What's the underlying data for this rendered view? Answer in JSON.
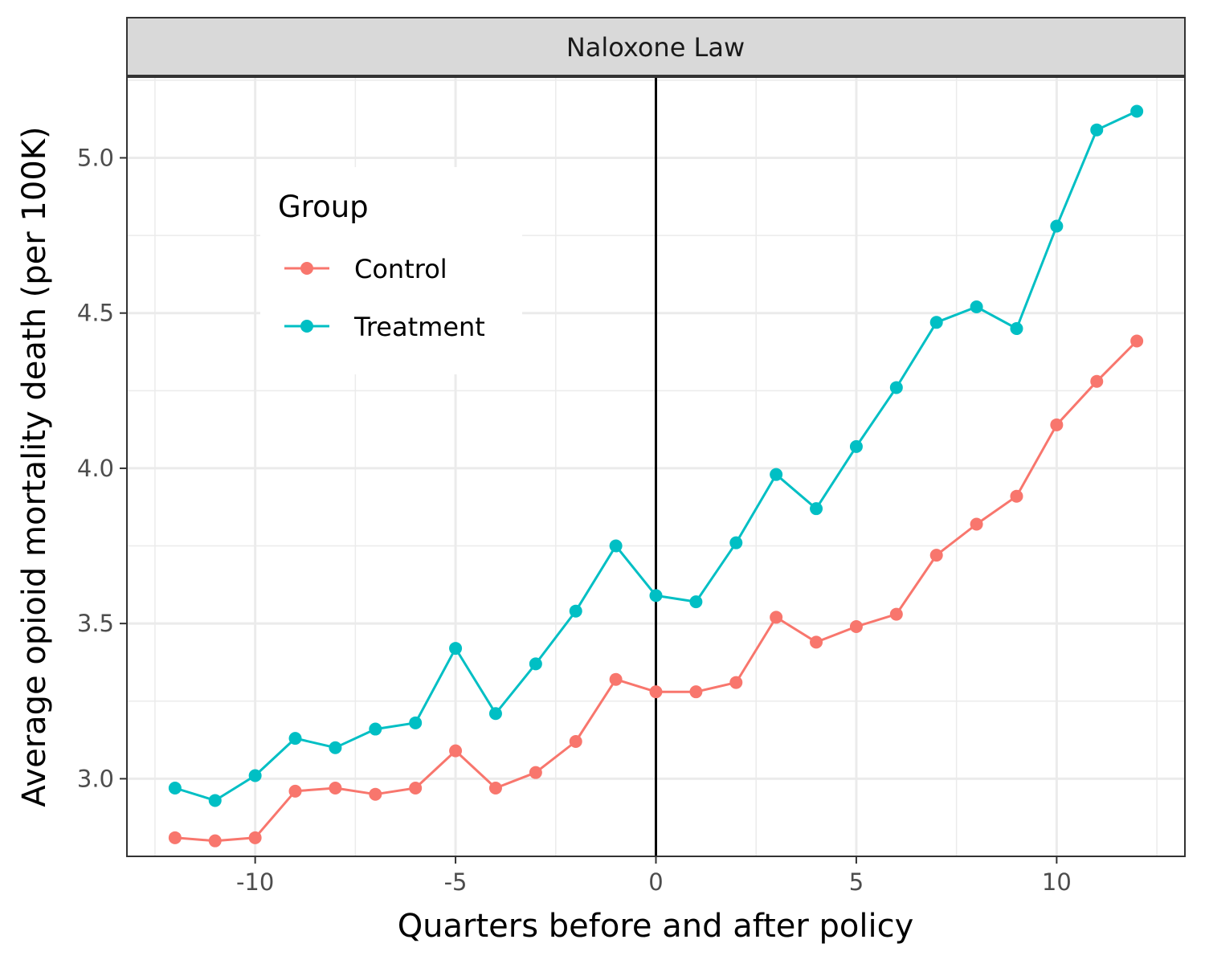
{
  "chart_data": {
    "type": "line",
    "facet_label": "Naloxone Law",
    "xlabel": "Quarters before and after policy",
    "ylabel": "Average opioid mortality death (per 100K)",
    "x": [
      -12,
      -11,
      -10,
      -9,
      -8,
      -7,
      -6,
      -5,
      -4,
      -3,
      -2,
      -1,
      0,
      1,
      2,
      3,
      4,
      5,
      6,
      7,
      8,
      9,
      10,
      11,
      12
    ],
    "xlim": [
      -13.2,
      13.2
    ],
    "ylim": [
      2.75,
      5.26
    ],
    "x_ticks": [
      -10,
      -5,
      0,
      5,
      10
    ],
    "x_tick_labels": [
      "-10",
      "-5",
      "0",
      "5",
      "10"
    ],
    "y_ticks": [
      3.0,
      3.5,
      4.0,
      4.5,
      5.0
    ],
    "y_tick_labels": [
      "3.0",
      "3.5",
      "4.0",
      "4.5",
      "5.0"
    ],
    "vline_x": 0,
    "grid": true,
    "legend": {
      "title": "Group",
      "position": "upper-left inside"
    },
    "series": [
      {
        "name": "Control",
        "color": "#F8766D",
        "values": [
          2.81,
          2.8,
          2.81,
          2.96,
          2.97,
          2.95,
          2.97,
          3.09,
          2.97,
          3.02,
          3.12,
          3.32,
          3.28,
          3.28,
          3.31,
          3.52,
          3.44,
          3.49,
          3.53,
          3.72,
          3.82,
          3.91,
          4.14,
          4.28,
          4.41
        ]
      },
      {
        "name": "Treatment",
        "color": "#00BFC4",
        "values": [
          2.97,
          2.93,
          3.01,
          3.13,
          3.1,
          3.16,
          3.18,
          3.42,
          3.21,
          3.37,
          3.54,
          3.75,
          3.59,
          3.57,
          3.76,
          3.98,
          3.87,
          4.07,
          4.26,
          4.47,
          4.52,
          4.45,
          4.78,
          5.09,
          5.15
        ]
      }
    ]
  }
}
